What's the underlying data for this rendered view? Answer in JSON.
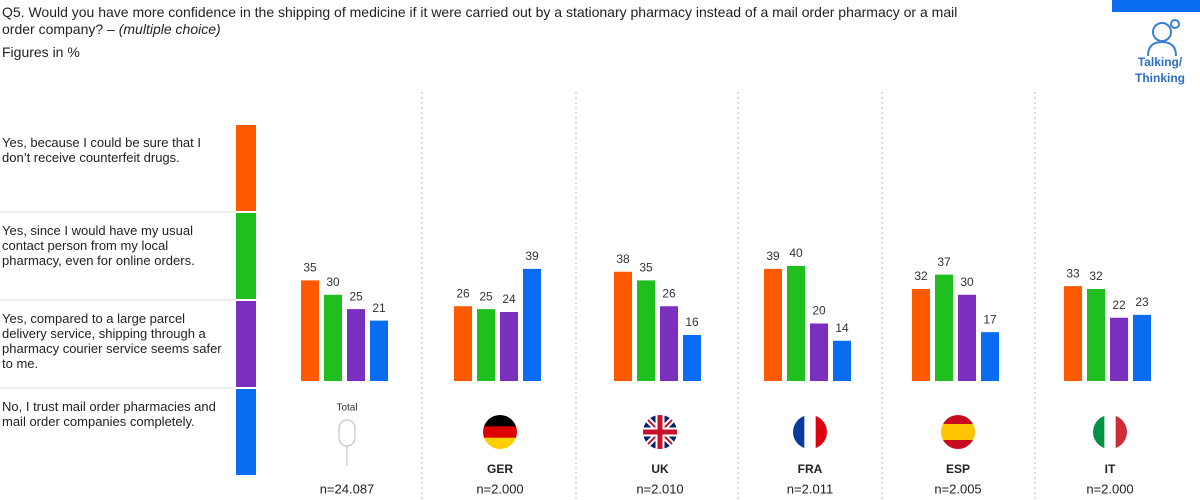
{
  "chart_data": {
    "type": "bar",
    "title": "Q5. Would you have more confidence in the shipping of medicine if it were carried out by a stationary pharmacy instead of a mail order pharmacy or a mail order company? –",
    "title_note": "(multiple choice)",
    "subtitle": "Figures in %",
    "badge_lines": [
      "Talking/",
      "Thinking"
    ],
    "categories": [
      "Total",
      "GER",
      "UK",
      "FRA",
      "ESP",
      "IT"
    ],
    "sample_sizes": [
      "n=24.087",
      "n=2.000",
      "n=2.010",
      "n=2.011",
      "n=2.005",
      "n=2.000"
    ],
    "series": [
      {
        "name": "Yes, because I could be sure that I don’t receive counterfeit drugs.",
        "color": "#ff5a00",
        "values": [
          35,
          26,
          38,
          39,
          32,
          33
        ]
      },
      {
        "name": "Yes, since I would have my usual contact person from my local pharmacy, even for online orders.",
        "color": "#1fbf1f",
        "values": [
          30,
          25,
          35,
          40,
          37,
          32
        ]
      },
      {
        "name": "Yes, compared to a large parcel delivery service, shipping through a pharmacy courier service seems safer to me.",
        "color": "#7b2fbe",
        "values": [
          25,
          24,
          26,
          20,
          30,
          22
        ]
      },
      {
        "name": "No, I trust mail order pharmacies and mail order companies completely.",
        "color": "#0a6cf0",
        "values": [
          21,
          39,
          16,
          14,
          17,
          23
        ]
      }
    ]
  }
}
